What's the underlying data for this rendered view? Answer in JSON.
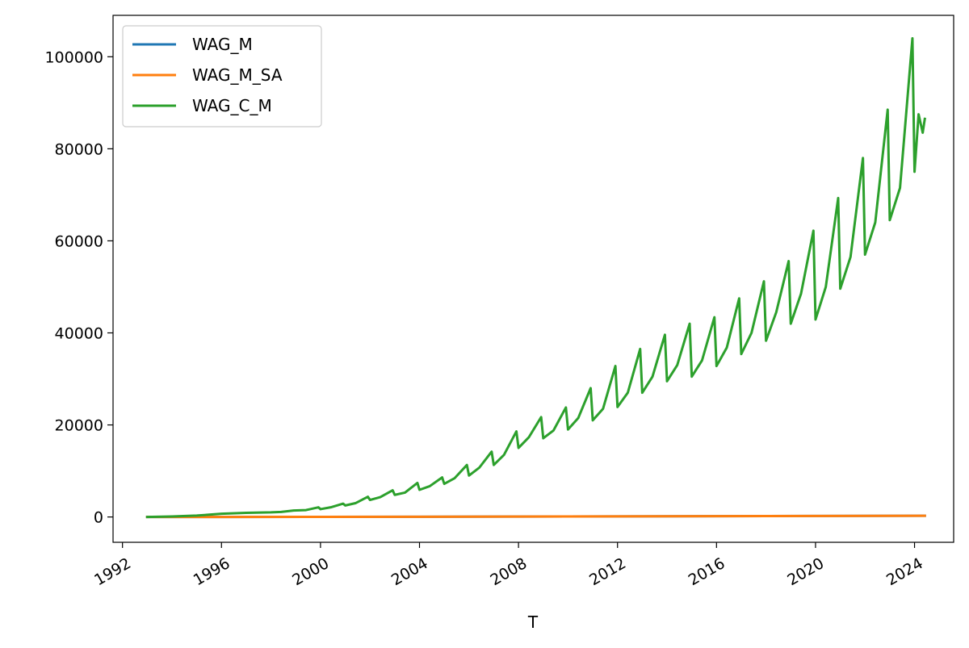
{
  "chart_data": {
    "type": "line",
    "title": "",
    "xlabel": "T",
    "ylabel": "",
    "x_ticks": [
      "1992",
      "1996",
      "2000",
      "2004",
      "2008",
      "2012",
      "2016",
      "2020",
      "2024"
    ],
    "y_ticks": [
      "0",
      "20000",
      "40000",
      "60000",
      "80000",
      "100000"
    ],
    "xlim": [
      "1991-08-15",
      "2025-08-01"
    ],
    "ylim": [
      -5500,
      109000
    ],
    "legend_position": "top-left",
    "grid": false,
    "series": [
      {
        "name": "WAG_M",
        "color": "#1f77b4",
        "points": [
          [
            "1993-01-01",
            0
          ],
          [
            "1996-01-01",
            8
          ],
          [
            "2000-01-01",
            25
          ],
          [
            "2004-01-01",
            55
          ],
          [
            "2008-01-01",
            95
          ],
          [
            "2012-01-01",
            140
          ],
          [
            "2016-01-01",
            175
          ],
          [
            "2020-01-01",
            215
          ],
          [
            "2024-06-01",
            270
          ]
        ]
      },
      {
        "name": "WAG_M_SA",
        "color": "#ff7f0e",
        "points": [
          [
            "1993-01-01",
            0
          ],
          [
            "1996-01-01",
            8
          ],
          [
            "2000-01-01",
            25
          ],
          [
            "2004-01-01",
            55
          ],
          [
            "2008-01-01",
            95
          ],
          [
            "2012-01-01",
            140
          ],
          [
            "2016-01-01",
            175
          ],
          [
            "2020-01-01",
            215
          ],
          [
            "2024-06-01",
            270
          ]
        ]
      },
      {
        "name": "WAG_C_M",
        "color": "#2ca02c",
        "points": [
          [
            "1993-01-01",
            0
          ],
          [
            "1994-01-01",
            100
          ],
          [
            "1995-01-01",
            300
          ],
          [
            "1996-01-01",
            700
          ],
          [
            "1997-01-01",
            900
          ],
          [
            "1998-01-01",
            1000
          ],
          [
            "1998-06-01",
            1100
          ],
          [
            "1998-12-01",
            1400
          ],
          [
            "1999-06-01",
            1500
          ],
          [
            "1999-12-01",
            2100
          ],
          [
            "2000-01-01",
            1700
          ],
          [
            "2000-06-01",
            2100
          ],
          [
            "2000-12-01",
            2900
          ],
          [
            "2001-01-01",
            2500
          ],
          [
            "2001-06-01",
            3000
          ],
          [
            "2001-12-01",
            4400
          ],
          [
            "2002-01-01",
            3700
          ],
          [
            "2002-06-01",
            4300
          ],
          [
            "2002-12-01",
            5800
          ],
          [
            "2003-01-01",
            4800
          ],
          [
            "2003-06-01",
            5300
          ],
          [
            "2003-12-01",
            7400
          ],
          [
            "2004-01-01",
            5900
          ],
          [
            "2004-06-01",
            6700
          ],
          [
            "2004-12-01",
            8600
          ],
          [
            "2005-01-01",
            7200
          ],
          [
            "2005-06-01",
            8400
          ],
          [
            "2005-12-01",
            11300
          ],
          [
            "2006-01-01",
            9000
          ],
          [
            "2006-06-01",
            10700
          ],
          [
            "2006-12-01",
            14200
          ],
          [
            "2007-01-01",
            11300
          ],
          [
            "2007-06-01",
            13500
          ],
          [
            "2007-12-01",
            18600
          ],
          [
            "2008-01-01",
            15000
          ],
          [
            "2008-06-01",
            17300
          ],
          [
            "2008-12-01",
            21700
          ],
          [
            "2009-01-01",
            17100
          ],
          [
            "2009-06-01",
            18800
          ],
          [
            "2009-12-01",
            23800
          ],
          [
            "2010-01-01",
            19000
          ],
          [
            "2010-06-01",
            21500
          ],
          [
            "2010-12-01",
            28000
          ],
          [
            "2011-01-01",
            21000
          ],
          [
            "2011-06-01",
            23500
          ],
          [
            "2011-12-01",
            32800
          ],
          [
            "2012-01-01",
            23900
          ],
          [
            "2012-06-01",
            27000
          ],
          [
            "2012-12-01",
            36500
          ],
          [
            "2013-01-01",
            27000
          ],
          [
            "2013-06-01",
            30500
          ],
          [
            "2013-12-01",
            39600
          ],
          [
            "2014-01-01",
            29500
          ],
          [
            "2014-06-01",
            33000
          ],
          [
            "2014-12-01",
            42000
          ],
          [
            "2015-01-01",
            30500
          ],
          [
            "2015-06-01",
            34000
          ],
          [
            "2015-12-01",
            43400
          ],
          [
            "2016-01-01",
            32800
          ],
          [
            "2016-06-01",
            36800
          ],
          [
            "2016-12-01",
            47500
          ],
          [
            "2017-01-01",
            35400
          ],
          [
            "2017-06-01",
            40000
          ],
          [
            "2017-12-01",
            51200
          ],
          [
            "2018-01-01",
            38300
          ],
          [
            "2018-06-01",
            44500
          ],
          [
            "2018-12-01",
            55600
          ],
          [
            "2019-01-01",
            42000
          ],
          [
            "2019-06-01",
            48500
          ],
          [
            "2019-12-01",
            62200
          ],
          [
            "2020-01-01",
            42900
          ],
          [
            "2020-06-01",
            50000
          ],
          [
            "2020-12-01",
            69300
          ],
          [
            "2021-01-01",
            49600
          ],
          [
            "2021-06-01",
            56500
          ],
          [
            "2021-12-01",
            78000
          ],
          [
            "2022-01-01",
            57000
          ],
          [
            "2022-06-01",
            64000
          ],
          [
            "2022-12-01",
            88500
          ],
          [
            "2023-01-01",
            64500
          ],
          [
            "2023-06-01",
            71500
          ],
          [
            "2023-12-01",
            104000
          ],
          [
            "2024-01-01",
            75000
          ],
          [
            "2024-03-01",
            87500
          ],
          [
            "2024-05-01",
            83500
          ],
          [
            "2024-06-01",
            86500
          ]
        ]
      }
    ]
  }
}
